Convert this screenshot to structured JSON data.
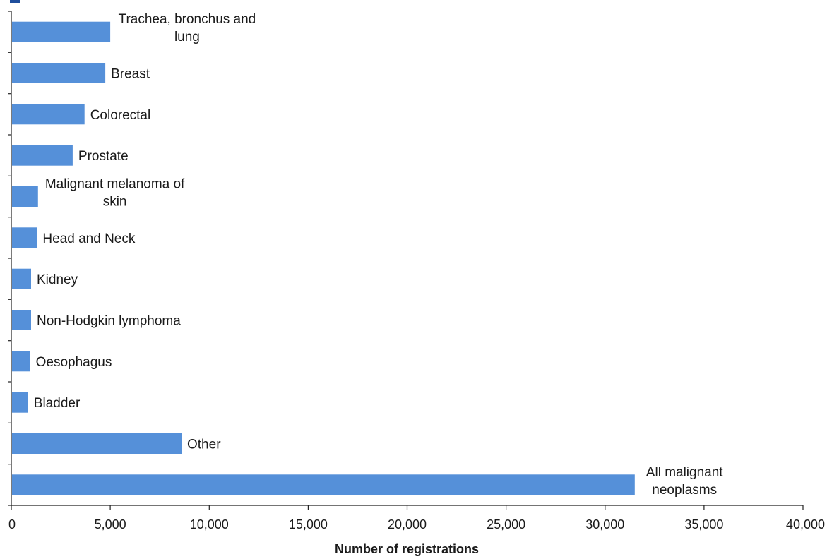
{
  "chart_data": {
    "type": "bar",
    "orientation": "horizontal",
    "categories": [
      "Trachea, bronchus and lung",
      "Breast",
      "Colorectal",
      "Prostate",
      "Malignant melanoma of skin",
      "Head and Neck",
      "Kidney",
      "Non-Hodgkin lymphoma",
      "Oesophagus",
      "Bladder",
      "Other",
      "All malignant neoplasms"
    ],
    "values": [
      5000,
      4750,
      3700,
      3100,
      1350,
      1300,
      1000,
      1000,
      950,
      850,
      8600,
      31500
    ],
    "xlabel": "Number of registrations",
    "ylabel": "",
    "xlim": [
      0,
      40000
    ],
    "xticks": [
      "0",
      "5,000",
      "10,000",
      "15,000",
      "20,000",
      "25,000",
      "30,000",
      "35,000",
      "40,000"
    ],
    "bar_color": "#5590d9",
    "grid": false,
    "legend": "none"
  }
}
